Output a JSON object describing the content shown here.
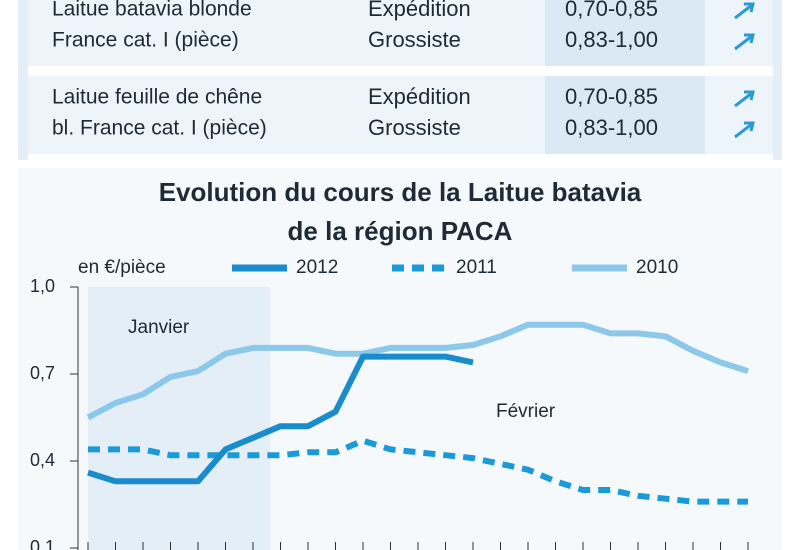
{
  "table": {
    "rows": [
      {
        "product": [
          "Laitue batavia blonde",
          "France cat. I (pièce)"
        ],
        "stages": [
          "Expédition",
          "Grossiste"
        ],
        "prices": [
          "0,70-0,85",
          "0,83-1,00"
        ]
      },
      {
        "product": [
          "Laitue feuille de chêne",
          "bl. France cat. I (pièce)"
        ],
        "stages": [
          "Expédition",
          "Grossiste"
        ],
        "prices": [
          "0,70-0,85",
          "0,83-1,00"
        ]
      }
    ]
  },
  "chart_data": {
    "type": "line",
    "title": [
      "Evolution du cours de la Laitue batavia",
      "de la région PACA"
    ],
    "y_label": "en €/pièce",
    "annotations": [
      "Janvier",
      "Février"
    ],
    "categories": [
      null,
      null,
      null,
      null,
      null,
      null,
      null,
      null,
      null,
      null,
      null,
      null,
      null,
      null,
      null,
      null,
      null,
      null,
      null,
      null,
      null,
      null,
      null,
      null,
      null
    ],
    "ylim": [
      0.1,
      1.0
    ],
    "yticks": [
      {
        "value": 0.1,
        "label": "0,1"
      },
      {
        "value": 0.4,
        "label": "0,4"
      },
      {
        "value": 0.7,
        "label": "0,7"
      },
      {
        "value": 1.0,
        "label": "1,0"
      }
    ],
    "series": [
      {
        "name": "2012",
        "color": "#1a8ccc",
        "dash": false,
        "values": [
          0.36,
          0.33,
          0.33,
          0.33,
          0.33,
          0.44,
          0.48,
          0.52,
          0.52,
          0.57,
          0.76,
          0.76,
          0.76,
          0.76,
          0.74,
          null,
          null,
          null,
          null,
          null,
          null,
          null,
          null,
          null,
          null
        ]
      },
      {
        "name": "2011",
        "color": "#1a9ad6",
        "dash": true,
        "values": [
          0.44,
          0.44,
          0.44,
          0.42,
          0.42,
          0.42,
          0.42,
          0.42,
          0.43,
          0.43,
          0.47,
          0.44,
          0.43,
          0.42,
          0.41,
          0.39,
          0.37,
          0.33,
          0.3,
          0.3,
          0.28,
          0.27,
          0.26,
          0.26,
          0.26
        ]
      },
      {
        "name": "2010",
        "color": "#8cc8ea",
        "dash": false,
        "values": [
          0.55,
          0.6,
          0.63,
          0.69,
          0.71,
          0.77,
          0.79,
          0.79,
          0.79,
          0.77,
          0.77,
          0.79,
          0.79,
          0.79,
          0.8,
          0.83,
          0.87,
          0.87,
          0.87,
          0.84,
          0.84,
          0.83,
          0.78,
          0.74,
          0.71
        ]
      }
    ]
  }
}
